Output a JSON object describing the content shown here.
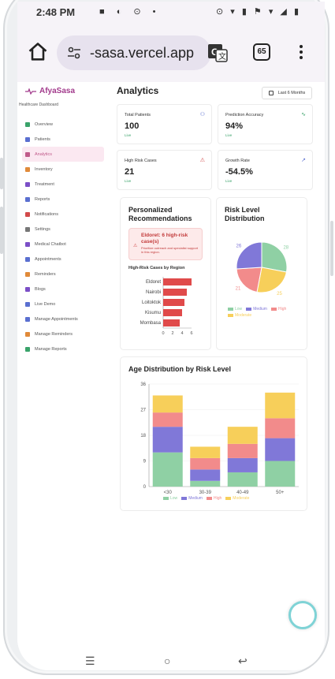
{
  "statusbar": {
    "time": "2:48 PM",
    "left_icons": "■ ◐ ⊙ •",
    "right_icons": "⊙ ▾ ▮ ⚑ ▾ ◢ ▮"
  },
  "browser": {
    "url": "-sasa.vercel.app",
    "tab_count": "65"
  },
  "sidebar": {
    "brand": "AfyaSasa",
    "subtitle": "Healthcare Dashboard",
    "items": [
      {
        "label": "Overview",
        "color": "#3aa36a"
      },
      {
        "label": "Patients",
        "color": "#5a6fd0"
      },
      {
        "label": "Analytics",
        "color": "#c05a8a"
      },
      {
        "label": "Inventory",
        "color": "#e08a3a"
      },
      {
        "label": "Treatment",
        "color": "#7b4fc7"
      },
      {
        "label": "Reports",
        "color": "#5a6fd0"
      },
      {
        "label": "Notifications",
        "color": "#d24a4a"
      },
      {
        "label": "Settings",
        "color": "#777777"
      },
      {
        "label": "Medical Chatbot",
        "color": "#7b4fc7"
      },
      {
        "label": "Appointments",
        "color": "#5a6fd0"
      },
      {
        "label": "Reminders",
        "color": "#e08a3a"
      },
      {
        "label": "Blogs",
        "color": "#7b4fc7"
      },
      {
        "label": "Live Demo",
        "color": "#5a6fd0"
      },
      {
        "label": "Manage Appointments",
        "color": "#5a6fd0"
      },
      {
        "label": "Manage Reminders",
        "color": "#e08a3a"
      },
      {
        "label": "Manage Reports",
        "color": "#3aa36a"
      }
    ]
  },
  "main": {
    "title": "Analytics",
    "range_label": "Last 6 Months",
    "stats": [
      {
        "label": "Total Patients",
        "value": "100",
        "note": "Live"
      },
      {
        "label": "Prediction Accuracy",
        "value": "94%",
        "note": "Live"
      },
      {
        "label": "High Risk Cases",
        "value": "21",
        "note": "Live"
      },
      {
        "label": "Growth Rate",
        "value": "-54.5%",
        "note": "Live"
      }
    ],
    "recommendations": {
      "title": "Personalized Recommendations",
      "alert_title": "Eldoret: 6 high-risk case(s)",
      "alert_desc": "Prioritize outreach and specialist support in this region.",
      "chart_title": "High-Risk Cases by Region"
    },
    "distribution": {
      "title": "Risk Level Distribution"
    },
    "age": {
      "title": "Age Distribution by Risk Level"
    }
  },
  "colors": {
    "low": "#8fd0a4",
    "medium": "#8078d8",
    "high": "#f28b8b",
    "moderate": "#f7cf5a",
    "bar": "#e04a4a"
  },
  "chart_data": [
    {
      "type": "bar",
      "orientation": "horizontal",
      "title": "High-Risk Cases by Region",
      "categories": [
        "Eldoret",
        "Nairobi",
        "Loitoktok",
        "Kisumu",
        "Mombasa"
      ],
      "values": [
        6,
        5,
        4.5,
        4,
        3.5
      ],
      "xlim": [
        0,
        6
      ],
      "xticks": [
        "0",
        "2",
        "4",
        "6"
      ]
    },
    {
      "type": "pie",
      "title": "Risk Level Distribution",
      "slices": [
        {
          "name": "Low",
          "value": 28
        },
        {
          "name": "Moderate",
          "value": 25
        },
        {
          "name": "High",
          "value": 21
        },
        {
          "name": "Medium",
          "value": 26
        }
      ],
      "legend": [
        "Low",
        "Medium",
        "High",
        "Moderate"
      ]
    },
    {
      "type": "bar",
      "stacked": true,
      "title": "Age Distribution by Risk Level",
      "categories": [
        "<30",
        "30-39",
        "40-49",
        "50+"
      ],
      "series": [
        {
          "name": "Low",
          "values": [
            12,
            2,
            5,
            9
          ]
        },
        {
          "name": "Medium",
          "values": [
            9,
            4,
            5,
            8
          ]
        },
        {
          "name": "High",
          "values": [
            5,
            4,
            5,
            7
          ]
        },
        {
          "name": "Moderate",
          "values": [
            6,
            4,
            6,
            9
          ]
        }
      ],
      "ylim": [
        0,
        36
      ],
      "yticks": [
        "0",
        "9",
        "18",
        "27",
        "36"
      ]
    }
  ],
  "bottom_nav": {
    "recents": "☰",
    "home": "○",
    "back": "↩"
  }
}
